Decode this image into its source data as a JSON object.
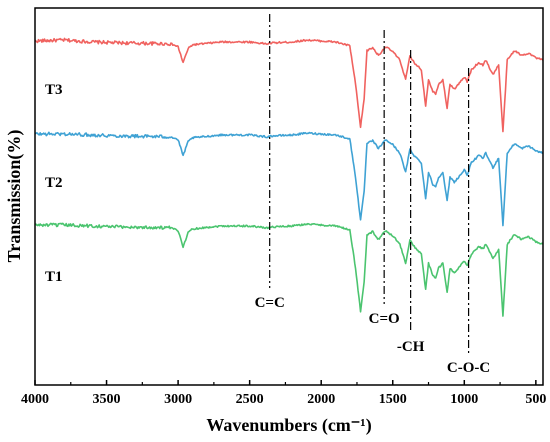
{
  "chart_data": {
    "type": "line",
    "xlabel": "Wavenumbers (cm⁻¹)",
    "ylabel": "Transmission(%)",
    "xlim": [
      4000,
      450
    ],
    "x_reversed": true,
    "x_ticks": [
      4000,
      3500,
      3000,
      2500,
      2000,
      1500,
      1000,
      500
    ],
    "y_ticks_shown": false,
    "grid": false,
    "series": [
      {
        "name": "T3",
        "color": "#f0625f",
        "points": [
          [
            4000,
            0.5
          ],
          [
            3800,
            0.52
          ],
          [
            3600,
            0.48
          ],
          [
            3400,
            0.46
          ],
          [
            3200,
            0.45
          ],
          [
            3050,
            0.44
          ],
          [
            3000,
            0.38
          ],
          [
            2965,
            0.05
          ],
          [
            2930,
            0.34
          ],
          [
            2900,
            0.42
          ],
          [
            2700,
            0.48
          ],
          [
            2500,
            0.48
          ],
          [
            2380,
            0.44
          ],
          [
            2340,
            0.46
          ],
          [
            2200,
            0.48
          ],
          [
            2100,
            0.52
          ],
          [
            2000,
            0.5
          ],
          [
            1900,
            0.48
          ],
          [
            1800,
            0.4
          ],
          [
            1760,
            -0.4
          ],
          [
            1725,
            -1.3
          ],
          [
            1700,
            -0.7
          ],
          [
            1680,
            0.3
          ],
          [
            1640,
            0.36
          ],
          [
            1600,
            0.2
          ],
          [
            1550,
            0.38
          ],
          [
            1500,
            0.28
          ],
          [
            1450,
            0.1
          ],
          [
            1410,
            -0.3
          ],
          [
            1380,
            0.18
          ],
          [
            1350,
            0.05
          ],
          [
            1300,
            -0.1
          ],
          [
            1270,
            -0.85
          ],
          [
            1250,
            -0.3
          ],
          [
            1220,
            -0.55
          ],
          [
            1200,
            -0.6
          ],
          [
            1180,
            -0.4
          ],
          [
            1150,
            -0.3
          ],
          [
            1120,
            -0.9
          ],
          [
            1100,
            -0.4
          ],
          [
            1070,
            -0.5
          ],
          [
            1040,
            -0.4
          ],
          [
            1000,
            -0.25
          ],
          [
            980,
            -0.35
          ],
          [
            950,
            -0.1
          ],
          [
            900,
            0.05
          ],
          [
            870,
            0.0
          ],
          [
            850,
            0.1
          ],
          [
            800,
            -0.2
          ],
          [
            760,
            0.0
          ],
          [
            730,
            -1.4
          ],
          [
            700,
            0.1
          ],
          [
            650,
            0.3
          ],
          [
            600,
            0.2
          ],
          [
            550,
            0.25
          ],
          [
            500,
            0.15
          ],
          [
            450,
            0.1
          ]
        ]
      },
      {
        "name": "T2",
        "color": "#3fa2d4",
        "points": [
          [
            4000,
            0.5
          ],
          [
            3800,
            0.5
          ],
          [
            3600,
            0.48
          ],
          [
            3400,
            0.46
          ],
          [
            3200,
            0.45
          ],
          [
            3050,
            0.44
          ],
          [
            3000,
            0.38
          ],
          [
            2965,
            0.05
          ],
          [
            2930,
            0.34
          ],
          [
            2900,
            0.42
          ],
          [
            2700,
            0.48
          ],
          [
            2500,
            0.48
          ],
          [
            2380,
            0.44
          ],
          [
            2340,
            0.46
          ],
          [
            2200,
            0.48
          ],
          [
            2100,
            0.52
          ],
          [
            2000,
            0.5
          ],
          [
            1900,
            0.48
          ],
          [
            1800,
            0.4
          ],
          [
            1760,
            -0.4
          ],
          [
            1725,
            -1.3
          ],
          [
            1700,
            -0.7
          ],
          [
            1680,
            0.3
          ],
          [
            1640,
            0.36
          ],
          [
            1600,
            0.2
          ],
          [
            1550,
            0.38
          ],
          [
            1500,
            0.28
          ],
          [
            1450,
            0.1
          ],
          [
            1410,
            -0.3
          ],
          [
            1380,
            0.18
          ],
          [
            1350,
            0.05
          ],
          [
            1300,
            -0.1
          ],
          [
            1270,
            -0.85
          ],
          [
            1250,
            -0.3
          ],
          [
            1220,
            -0.55
          ],
          [
            1200,
            -0.6
          ],
          [
            1180,
            -0.4
          ],
          [
            1150,
            -0.3
          ],
          [
            1120,
            -0.9
          ],
          [
            1100,
            -0.4
          ],
          [
            1070,
            -0.5
          ],
          [
            1040,
            -0.4
          ],
          [
            1000,
            -0.25
          ],
          [
            980,
            -0.35
          ],
          [
            950,
            -0.1
          ],
          [
            900,
            0.05
          ],
          [
            870,
            0.0
          ],
          [
            850,
            0.1
          ],
          [
            800,
            -0.2
          ],
          [
            760,
            0.0
          ],
          [
            730,
            -1.4
          ],
          [
            700,
            0.1
          ],
          [
            650,
            0.3
          ],
          [
            600,
            0.2
          ],
          [
            550,
            0.25
          ],
          [
            500,
            0.15
          ],
          [
            450,
            0.1
          ]
        ]
      },
      {
        "name": "T1",
        "color": "#4bc46f",
        "points": [
          [
            4000,
            0.5
          ],
          [
            3800,
            0.5
          ],
          [
            3600,
            0.48
          ],
          [
            3400,
            0.46
          ],
          [
            3200,
            0.45
          ],
          [
            3050,
            0.44
          ],
          [
            3000,
            0.38
          ],
          [
            2965,
            0.05
          ],
          [
            2930,
            0.34
          ],
          [
            2900,
            0.42
          ],
          [
            2700,
            0.48
          ],
          [
            2500,
            0.48
          ],
          [
            2380,
            0.44
          ],
          [
            2340,
            0.46
          ],
          [
            2200,
            0.48
          ],
          [
            2100,
            0.52
          ],
          [
            2000,
            0.5
          ],
          [
            1900,
            0.48
          ],
          [
            1800,
            0.4
          ],
          [
            1760,
            -0.4
          ],
          [
            1725,
            -1.3
          ],
          [
            1700,
            -0.7
          ],
          [
            1680,
            0.3
          ],
          [
            1640,
            0.36
          ],
          [
            1600,
            0.2
          ],
          [
            1550,
            0.38
          ],
          [
            1500,
            0.28
          ],
          [
            1450,
            0.1
          ],
          [
            1410,
            -0.3
          ],
          [
            1380,
            0.18
          ],
          [
            1350,
            0.05
          ],
          [
            1300,
            -0.1
          ],
          [
            1270,
            -0.85
          ],
          [
            1250,
            -0.3
          ],
          [
            1220,
            -0.55
          ],
          [
            1200,
            -0.6
          ],
          [
            1180,
            -0.4
          ],
          [
            1150,
            -0.3
          ],
          [
            1120,
            -0.9
          ],
          [
            1100,
            -0.4
          ],
          [
            1070,
            -0.5
          ],
          [
            1040,
            -0.4
          ],
          [
            1000,
            -0.25
          ],
          [
            980,
            -0.35
          ],
          [
            950,
            -0.1
          ],
          [
            900,
            0.05
          ],
          [
            870,
            0.0
          ],
          [
            850,
            0.1
          ],
          [
            800,
            -0.2
          ],
          [
            760,
            0.0
          ],
          [
            730,
            -1.4
          ],
          [
            700,
            0.1
          ],
          [
            650,
            0.3
          ],
          [
            600,
            0.2
          ],
          [
            550,
            0.25
          ],
          [
            500,
            0.15
          ],
          [
            450,
            0.1
          ]
        ]
      }
    ],
    "annotations": [
      {
        "label": "C=C",
        "x": 2360
      },
      {
        "label": "C=O",
        "x": 1560
      },
      {
        "label": "-CH",
        "x": 1375
      },
      {
        "label": "C-O-C",
        "x": 970
      }
    ]
  }
}
